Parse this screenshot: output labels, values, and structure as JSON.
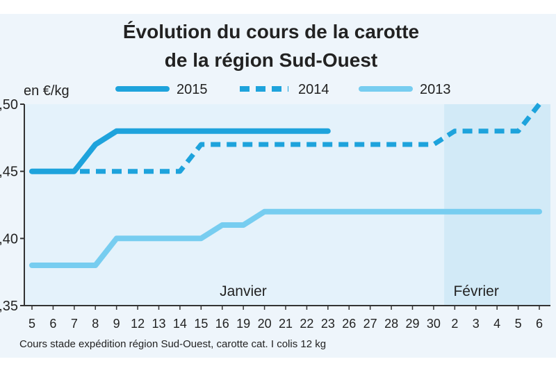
{
  "chart_data": {
    "type": "line",
    "title_line1": "Évolution du cours de la carotte",
    "title_line2": "de la région Sud-Ouest",
    "ylabel": "en €/kg",
    "ylim": [
      0.35,
      0.5
    ],
    "yticks": [
      0.35,
      0.4,
      0.45,
      0.5
    ],
    "ytick_labels": [
      ",35",
      ",40",
      ",45",
      ",50"
    ],
    "x_categories": [
      "5",
      "6",
      "7",
      "8",
      "9",
      "12",
      "13",
      "14",
      "15",
      "16",
      "19",
      "20",
      "21",
      "22",
      "23",
      "26",
      "27",
      "28",
      "29",
      "30",
      "2",
      "3",
      "4",
      "5",
      "6"
    ],
    "months": [
      {
        "label": "Janvier",
        "from_index": 0,
        "to_index": 19,
        "shaded": false
      },
      {
        "label": "Février",
        "from_index": 20,
        "to_index": 24,
        "shaded": true
      }
    ],
    "series": [
      {
        "name": "2015",
        "style": "solid",
        "color": "#1ea3dc",
        "values": [
          0.45,
          0.45,
          0.45,
          0.47,
          0.48,
          0.48,
          0.48,
          0.48,
          0.48,
          0.48,
          0.48,
          0.48,
          0.48,
          0.48,
          0.48,
          null,
          null,
          null,
          null,
          null,
          null,
          null,
          null,
          null,
          null
        ]
      },
      {
        "name": "2014",
        "style": "dashed",
        "color": "#1ea3dc",
        "values": [
          0.45,
          0.45,
          0.45,
          0.45,
          0.45,
          0.45,
          0.45,
          0.45,
          0.47,
          0.47,
          0.47,
          0.47,
          0.47,
          0.47,
          0.47,
          0.47,
          0.47,
          0.47,
          0.47,
          0.47,
          0.48,
          0.48,
          0.48,
          0.48,
          0.5
        ]
      },
      {
        "name": "2013",
        "style": "solid",
        "color": "#77cdf0",
        "values": [
          0.38,
          0.38,
          0.38,
          0.38,
          0.4,
          0.4,
          0.4,
          0.4,
          0.4,
          0.41,
          0.41,
          0.42,
          0.42,
          0.42,
          0.42,
          0.42,
          0.42,
          0.42,
          0.42,
          0.42,
          0.42,
          0.42,
          0.42,
          0.42,
          0.42
        ]
      }
    ],
    "note": "Cours stade expédition région Sud-Ouest, carotte cat. I colis 12 kg",
    "grid": false,
    "legend_position": "top"
  }
}
